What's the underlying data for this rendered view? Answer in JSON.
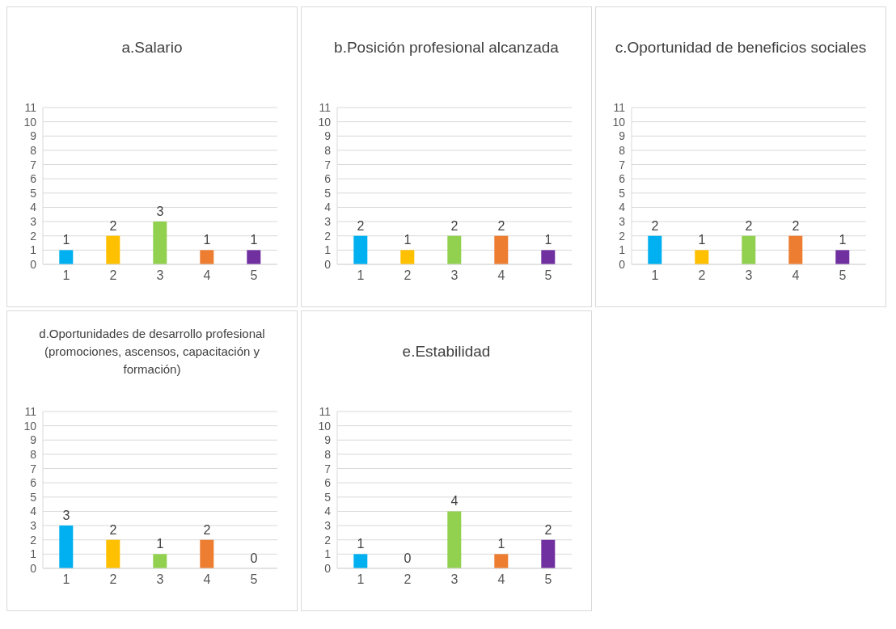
{
  "chart_data": [
    {
      "type": "bar",
      "title": "a.Salario",
      "categories": [
        "1",
        "2",
        "3",
        "4",
        "5"
      ],
      "values": [
        1,
        2,
        3,
        1,
        1
      ],
      "colors": [
        "#00b0f0",
        "#ffc000",
        "#92d050",
        "#ed7d31",
        "#7030a0"
      ],
      "ylim": [
        0,
        11
      ],
      "yticks": [
        0,
        1,
        2,
        3,
        4,
        5,
        6,
        7,
        8,
        9,
        10,
        11
      ],
      "grid": "y",
      "data_labels": true
    },
    {
      "type": "bar",
      "title": "b.Posición profesional alcanzada",
      "categories": [
        "1",
        "2",
        "3",
        "4",
        "5"
      ],
      "values": [
        2,
        1,
        2,
        2,
        1
      ],
      "colors": [
        "#00b0f0",
        "#ffc000",
        "#92d050",
        "#ed7d31",
        "#7030a0"
      ],
      "ylim": [
        0,
        11
      ],
      "yticks": [
        0,
        1,
        2,
        3,
        4,
        5,
        6,
        7,
        8,
        9,
        10,
        11
      ],
      "grid": "y",
      "data_labels": true
    },
    {
      "type": "bar",
      "title": "c.Oportunidad de beneficios sociales",
      "categories": [
        "1",
        "2",
        "3",
        "4",
        "5"
      ],
      "values": [
        2,
        1,
        2,
        2,
        1
      ],
      "colors": [
        "#00b0f0",
        "#ffc000",
        "#92d050",
        "#ed7d31",
        "#7030a0"
      ],
      "ylim": [
        0,
        11
      ],
      "yticks": [
        0,
        1,
        2,
        3,
        4,
        5,
        6,
        7,
        8,
        9,
        10,
        11
      ],
      "grid": "y",
      "data_labels": true
    },
    {
      "type": "bar",
      "title": "d.Oportunidades de desarrollo profesional (promociones, ascensos, capacitación y formación)",
      "categories": [
        "1",
        "2",
        "3",
        "4",
        "5"
      ],
      "values": [
        3,
        2,
        1,
        2,
        0
      ],
      "colors": [
        "#00b0f0",
        "#ffc000",
        "#92d050",
        "#ed7d31",
        "#7030a0"
      ],
      "ylim": [
        0,
        11
      ],
      "yticks": [
        0,
        1,
        2,
        3,
        4,
        5,
        6,
        7,
        8,
        9,
        10,
        11
      ],
      "grid": "y",
      "data_labels": true
    },
    {
      "type": "bar",
      "title": "e.Estabilidad",
      "categories": [
        "1",
        "2",
        "3",
        "4",
        "5"
      ],
      "values": [
        1,
        0,
        4,
        1,
        2
      ],
      "colors": [
        "#00b0f0",
        "#ffc000",
        "#92d050",
        "#ed7d31",
        "#7030a0"
      ],
      "ylim": [
        0,
        11
      ],
      "yticks": [
        0,
        1,
        2,
        3,
        4,
        5,
        6,
        7,
        8,
        9,
        10,
        11
      ],
      "grid": "y",
      "data_labels": true
    }
  ]
}
